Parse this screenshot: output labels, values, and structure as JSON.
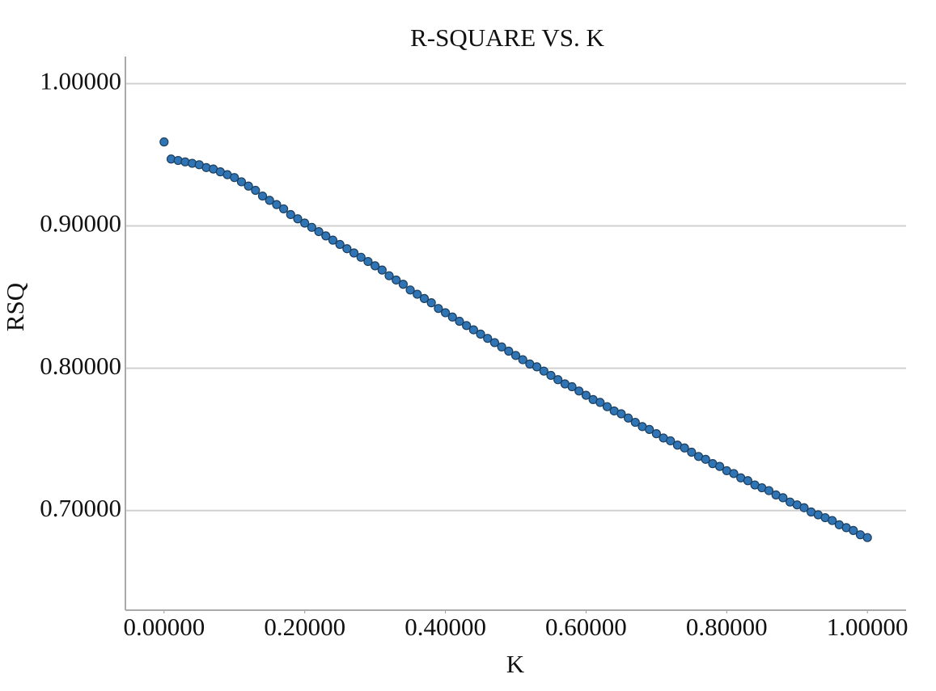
{
  "chart_data": {
    "type": "scatter",
    "title": "R-SQUARE VS. K",
    "x_label": "K",
    "y_label": "RSQ",
    "x": [
      0,
      0.01,
      0.02,
      0.03,
      0.04,
      0.05,
      0.06,
      0.07,
      0.08,
      0.09,
      0.1,
      0.11,
      0.12,
      0.13,
      0.14,
      0.15,
      0.16,
      0.17,
      0.18,
      0.19,
      0.2,
      0.21,
      0.22,
      0.23,
      0.24,
      0.25,
      0.26,
      0.27,
      0.28,
      0.29,
      0.3,
      0.31,
      0.32,
      0.33,
      0.34,
      0.35,
      0.36,
      0.37,
      0.38,
      0.39,
      0.4,
      0.41,
      0.42,
      0.43,
      0.44,
      0.45,
      0.46,
      0.47,
      0.48,
      0.49,
      0.5,
      0.51,
      0.52,
      0.53,
      0.54,
      0.55,
      0.56,
      0.57,
      0.58,
      0.59,
      0.6,
      0.61,
      0.62,
      0.63,
      0.64,
      0.65,
      0.66,
      0.67,
      0.68,
      0.69,
      0.7,
      0.71,
      0.72,
      0.73,
      0.74,
      0.75,
      0.76,
      0.77,
      0.78,
      0.79,
      0.8,
      0.81,
      0.82,
      0.83,
      0.84,
      0.85,
      0.86,
      0.87,
      0.88,
      0.89,
      0.9,
      0.91,
      0.92,
      0.93,
      0.94,
      0.95,
      0.96,
      0.97,
      0.98,
      0.99,
      1.0
    ],
    "values": [
      0.959,
      0.947,
      0.946,
      0.945,
      0.944,
      0.943,
      0.941,
      0.94,
      0.938,
      0.936,
      0.934,
      0.931,
      0.928,
      0.925,
      0.921,
      0.918,
      0.915,
      0.912,
      0.908,
      0.905,
      0.902,
      0.899,
      0.896,
      0.893,
      0.89,
      0.887,
      0.884,
      0.881,
      0.878,
      0.875,
      0.872,
      0.869,
      0.865,
      0.862,
      0.859,
      0.855,
      0.852,
      0.849,
      0.846,
      0.842,
      0.839,
      0.836,
      0.833,
      0.83,
      0.827,
      0.824,
      0.821,
      0.818,
      0.815,
      0.812,
      0.809,
      0.806,
      0.803,
      0.801,
      0.798,
      0.795,
      0.792,
      0.789,
      0.787,
      0.784,
      0.781,
      0.778,
      0.776,
      0.773,
      0.77,
      0.768,
      0.765,
      0.762,
      0.759,
      0.757,
      0.754,
      0.751,
      0.749,
      0.746,
      0.744,
      0.741,
      0.738,
      0.736,
      0.733,
      0.731,
      0.728,
      0.726,
      0.723,
      0.721,
      0.718,
      0.716,
      0.714,
      0.711,
      0.709,
      0.706,
      0.704,
      0.702,
      0.699,
      0.697,
      0.695,
      0.693,
      0.69,
      0.688,
      0.686,
      0.683,
      0.681
    ],
    "color": "#2f74b5",
    "xlim": [
      -0.055,
      1.055
    ],
    "ylim": [
      0.63,
      1.019
    ],
    "xticks": [
      {
        "value": 0,
        "label": "0.00000"
      },
      {
        "value": 0.2,
        "label": "0.20000"
      },
      {
        "value": 0.4,
        "label": "0.40000"
      },
      {
        "value": 0.6,
        "label": "0.60000"
      },
      {
        "value": 0.8,
        "label": "0.80000"
      },
      {
        "value": 1.0,
        "label": "1.00000"
      }
    ],
    "yticks": [
      {
        "value": 0.7,
        "label": "0.70000"
      },
      {
        "value": 0.8,
        "label": "0.80000"
      },
      {
        "value": 0.9,
        "label": "0.90000"
      },
      {
        "value": 1.0,
        "label": "1.00000"
      }
    ],
    "grid": true
  }
}
